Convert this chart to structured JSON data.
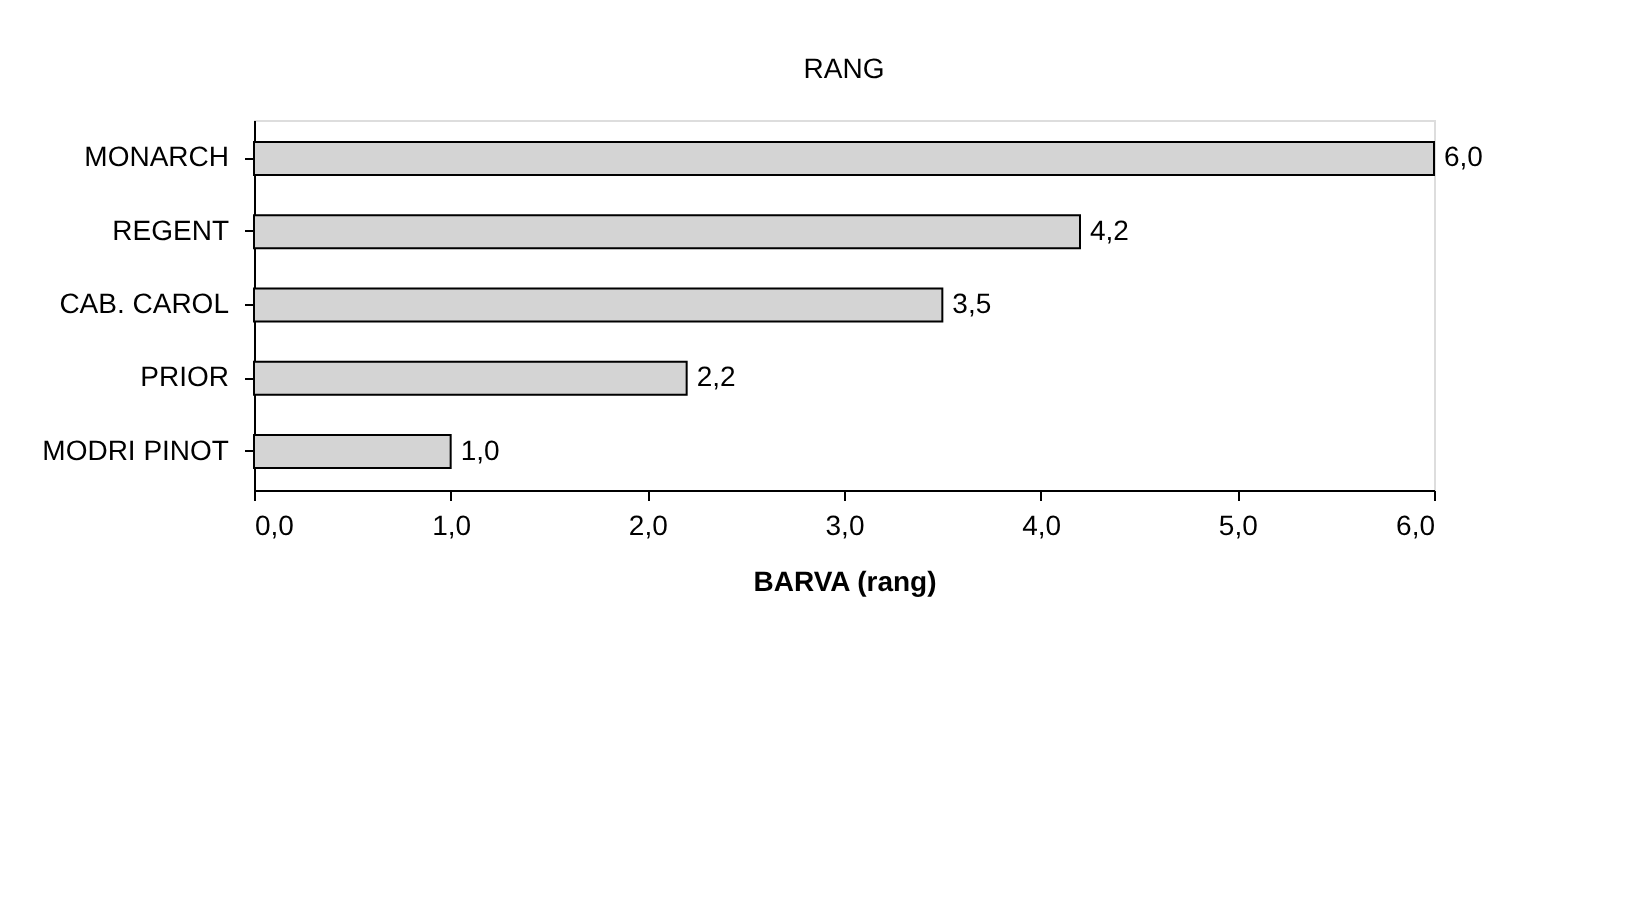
{
  "chart_data": {
    "type": "bar",
    "orientation": "horizontal",
    "title": "RANG",
    "xlabel": "BARVA (rang)",
    "categories": [
      "MONARCH",
      "REGENT",
      "CAB. CAROL",
      "PRIOR",
      "MODRI PINOT"
    ],
    "values": [
      6.0,
      4.2,
      3.5,
      2.2,
      1.0
    ],
    "value_labels": [
      "6,0",
      "4,2",
      "3,5",
      "2,2",
      "1,0"
    ],
    "color": "#d4d4d4",
    "xlim": [
      0,
      6
    ],
    "xticks": [
      {
        "value": 0,
        "label": "0,0"
      },
      {
        "value": 1,
        "label": "1,0"
      },
      {
        "value": 2,
        "label": "2,0"
      },
      {
        "value": 3,
        "label": "3,0"
      },
      {
        "value": 4,
        "label": "4,0"
      },
      {
        "value": 5,
        "label": "5,0"
      },
      {
        "value": 6,
        "label": "6,0"
      }
    ],
    "grid": false
  }
}
